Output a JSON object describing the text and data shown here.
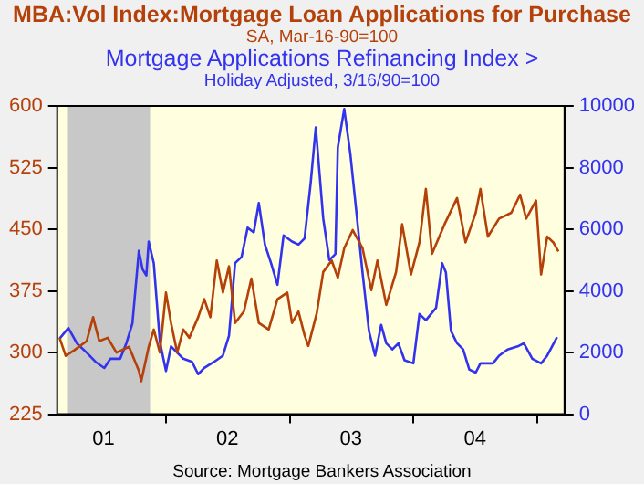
{
  "chart_data": {
    "type": "line",
    "legend": "top",
    "grid": false,
    "marker": "none",
    "line_style": "solid",
    "annotations": [
      "SA, Mar-16-90=100",
      "Holiday Adjusted, 3/16/90=100",
      "Source:  Mortgage Bankers Association"
    ],
    "xlim": [
      "2001-02-14",
      "2005-03-22"
    ],
    "xticks": [
      {
        "value": "2001-07-01",
        "label": "01"
      },
      {
        "value": "2002-01-01",
        "label": null
      },
      {
        "value": "2002-07-01",
        "label": "02"
      },
      {
        "value": "2003-01-01",
        "label": null
      },
      {
        "value": "2003-07-01",
        "label": "03"
      },
      {
        "value": "2004-01-01",
        "label": null
      },
      {
        "value": "2004-07-01",
        "label": "04"
      },
      {
        "value": "2005-01-01",
        "label": null
      }
    ],
    "ylim": [
      225,
      600
    ],
    "yticks": [
      225,
      300,
      375,
      450,
      525,
      600
    ],
    "y2lim": [
      0,
      10000
    ],
    "y2ticks": [
      0,
      2000,
      4000,
      6000,
      8000,
      10000
    ],
    "bands": [
      {
        "axis": "x",
        "from": "2001-03-15",
        "to": "2001-11-15",
        "label": null,
        "color": "#c8c8c8"
      }
    ],
    "series": [
      {
        "name": "MBA:Vol Index:Mortgage Loan Applications for Purchase",
        "color": "#b5410a",
        "x": [
          "2001-02-21",
          "2001-03-11",
          "2001-04-06",
          "2001-05-12",
          "2001-05-31",
          "2001-06-18",
          "2001-07-13",
          "2001-08-08",
          "2001-09-14",
          "2001-10-13",
          "2001-10-20",
          "2001-11-11",
          "2001-11-26",
          "2001-12-14",
          "2002-01-01",
          "2002-01-16",
          "2002-02-03",
          "2002-02-21",
          "2002-03-11",
          "2002-04-06",
          "2002-04-24",
          "2002-05-12",
          "2002-05-31",
          "2002-06-18",
          "2002-07-06",
          "2002-07-24",
          "2002-08-19",
          "2002-09-10",
          "2002-10-02",
          "2002-10-31",
          "2002-11-26",
          "2002-12-25",
          "2003-01-08",
          "2003-01-27",
          "2003-02-14",
          "2003-02-25",
          "2003-03-22",
          "2003-04-10",
          "2003-05-05",
          "2003-05-23",
          "2003-06-11",
          "2003-07-06",
          "2003-08-04",
          "2003-08-30",
          "2003-09-17",
          "2003-10-13",
          "2003-11-11",
          "2003-11-29",
          "2003-12-25",
          "2004-01-19",
          "2004-02-07",
          "2004-02-25",
          "2004-04-02",
          "2004-05-09",
          "2004-06-03",
          "2004-07-03",
          "2004-07-17",
          "2004-08-08",
          "2004-09-10",
          "2004-10-16",
          "2004-11-11",
          "2004-11-29",
          "2004-12-28",
          "2005-01-12",
          "2005-01-30",
          "2005-02-17",
          "2005-03-04"
        ],
        "values": [
          318,
          296,
          303,
          314,
          343,
          314,
          318,
          300,
          307,
          278,
          265,
          307,
          328,
          300,
          373,
          336,
          300,
          328,
          318,
          343,
          365,
          343,
          412,
          373,
          405,
          336,
          350,
          390,
          336,
          328,
          365,
          373,
          336,
          350,
          321,
          308,
          348,
          398,
          412,
          391,
          427,
          449,
          427,
          376,
          412,
          358,
          398,
          456,
          395,
          434,
          499,
          420,
          456,
          488,
          434,
          470,
          499,
          441,
          463,
          470,
          492,
          463,
          485,
          395,
          441,
          434,
          423
        ]
      },
      {
        "name": "Mortgage Applications Refinancing Index  >",
        "color": "#3333ee",
        "axis": "y2",
        "x": [
          "2001-02-21",
          "2001-03-19",
          "2001-04-13",
          "2001-05-12",
          "2001-06-07",
          "2001-07-03",
          "2001-07-21",
          "2001-08-19",
          "2001-09-06",
          "2001-09-24",
          "2001-10-13",
          "2001-10-24",
          "2001-11-04",
          "2001-11-11",
          "2001-11-26",
          "2001-12-14",
          "2002-01-01",
          "2002-01-16",
          "2002-02-03",
          "2002-02-21",
          "2002-03-19",
          "2002-04-06",
          "2002-04-24",
          "2002-05-23",
          "2002-06-18",
          "2002-07-06",
          "2002-07-24",
          "2002-08-12",
          "2002-08-30",
          "2002-09-17",
          "2002-10-02",
          "2002-10-20",
          "2002-11-07",
          "2002-11-26",
          "2002-12-14",
          "2003-01-08",
          "2003-01-27",
          "2003-02-14",
          "2003-03-04",
          "2003-03-19",
          "2003-04-10",
          "2003-04-28",
          "2003-05-16",
          "2003-05-23",
          "2003-06-11",
          "2003-06-29",
          "2003-07-17",
          "2003-08-04",
          "2003-08-23",
          "2003-09-10",
          "2003-09-28",
          "2003-10-13",
          "2003-10-31",
          "2003-11-18",
          "2003-12-06",
          "2004-01-01",
          "2004-01-19",
          "2004-02-07",
          "2004-03-08",
          "2004-03-26",
          "2004-04-06",
          "2004-04-21",
          "2004-05-09",
          "2004-05-27",
          "2004-06-14",
          "2004-07-03",
          "2004-07-17",
          "2004-08-23",
          "2004-09-10",
          "2004-10-05",
          "2004-11-04",
          "2004-11-22",
          "2004-12-17",
          "2005-01-12",
          "2005-01-30",
          "2005-02-28"
        ],
        "values": [
          2450,
          2800,
          2300,
          2000,
          1700,
          1500,
          1800,
          1800,
          2300,
          2950,
          5300,
          4700,
          4500,
          5600,
          4900,
          2350,
          1400,
          2200,
          2000,
          1800,
          1700,
          1300,
          1500,
          1700,
          1900,
          2550,
          4900,
          5100,
          6050,
          5900,
          6850,
          5500,
          4900,
          4200,
          5800,
          5600,
          5500,
          5700,
          7500,
          9300,
          6350,
          5000,
          5200,
          8650,
          9900,
          8450,
          6550,
          4600,
          2700,
          1900,
          2900,
          2300,
          2100,
          2300,
          1750,
          1650,
          3250,
          3050,
          3450,
          4900,
          4600,
          2700,
          2300,
          2100,
          1450,
          1350,
          1650,
          1650,
          1900,
          2100,
          2200,
          2300,
          1800,
          1650,
          1900,
          2500
        ]
      }
    ]
  }
}
